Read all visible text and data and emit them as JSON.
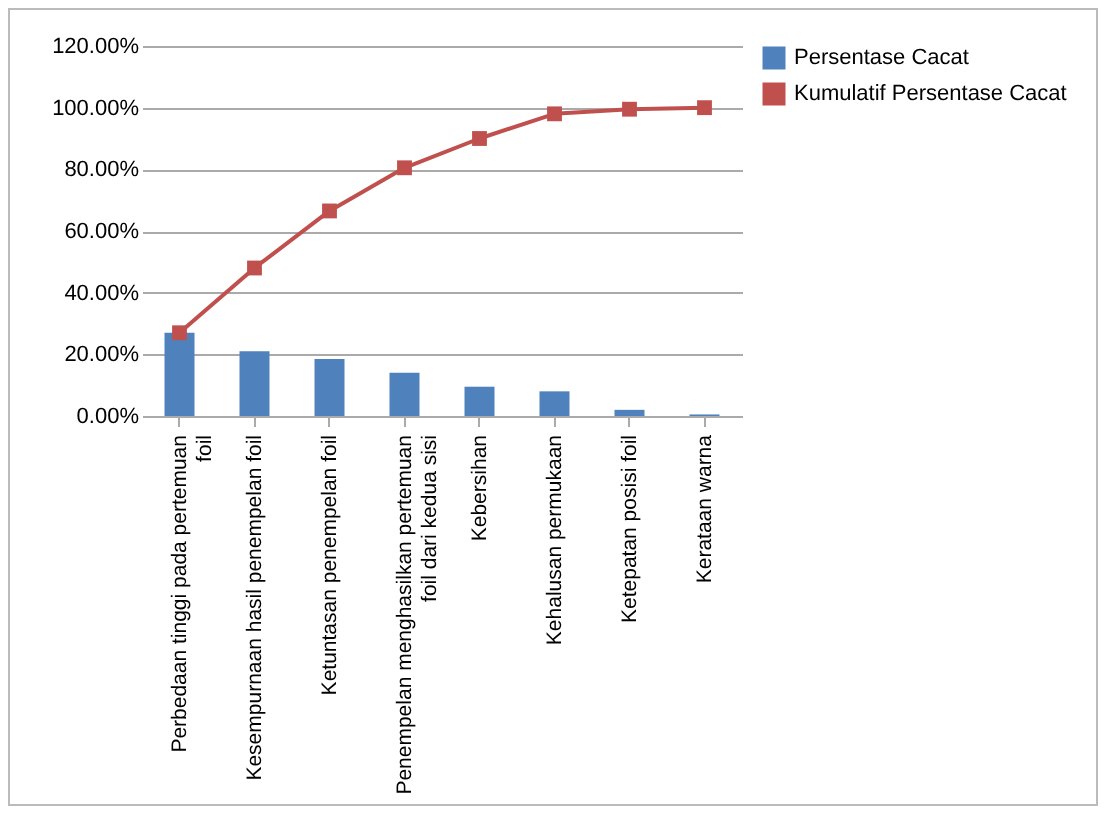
{
  "chart_data": {
    "type": "bar",
    "categories": [
      "Perbedaan tinggi pada pertemuan foil",
      "Kesempurnaan hasil penempelan foil",
      "Ketuntasan penempelan foil",
      "Penempelan menghasilkan pertemuan foil dari kedua sisi",
      "Kebersihan",
      "Kehalusan permukaan",
      "Ketepatan posisi foil",
      "Kerataan warna"
    ],
    "series": [
      {
        "name": "Persentase Cacat",
        "color": "#4f81bd",
        "values": [
          27,
          21,
          18.5,
          14,
          9.5,
          8,
          2,
          0.5
        ]
      },
      {
        "name": "Kumulatif Persentase Cacat",
        "type": "line",
        "color": "#c0504d",
        "values": [
          27,
          48,
          66.5,
          80.5,
          90,
          98,
          99.5,
          100
        ]
      }
    ],
    "ylim": [
      0,
      120
    ],
    "yticks": [
      {
        "value": 0,
        "label": "0.00%"
      },
      {
        "value": 20,
        "label": "20.00%"
      },
      {
        "value": 40,
        "label": "40.00%"
      },
      {
        "value": 60,
        "label": "60.00%"
      },
      {
        "value": 80,
        "label": "80.00%"
      },
      {
        "value": 100,
        "label": "100.00%"
      },
      {
        "value": 120,
        "label": "120.00%"
      }
    ],
    "grid": "y",
    "legend": "right",
    "marker": "square"
  }
}
